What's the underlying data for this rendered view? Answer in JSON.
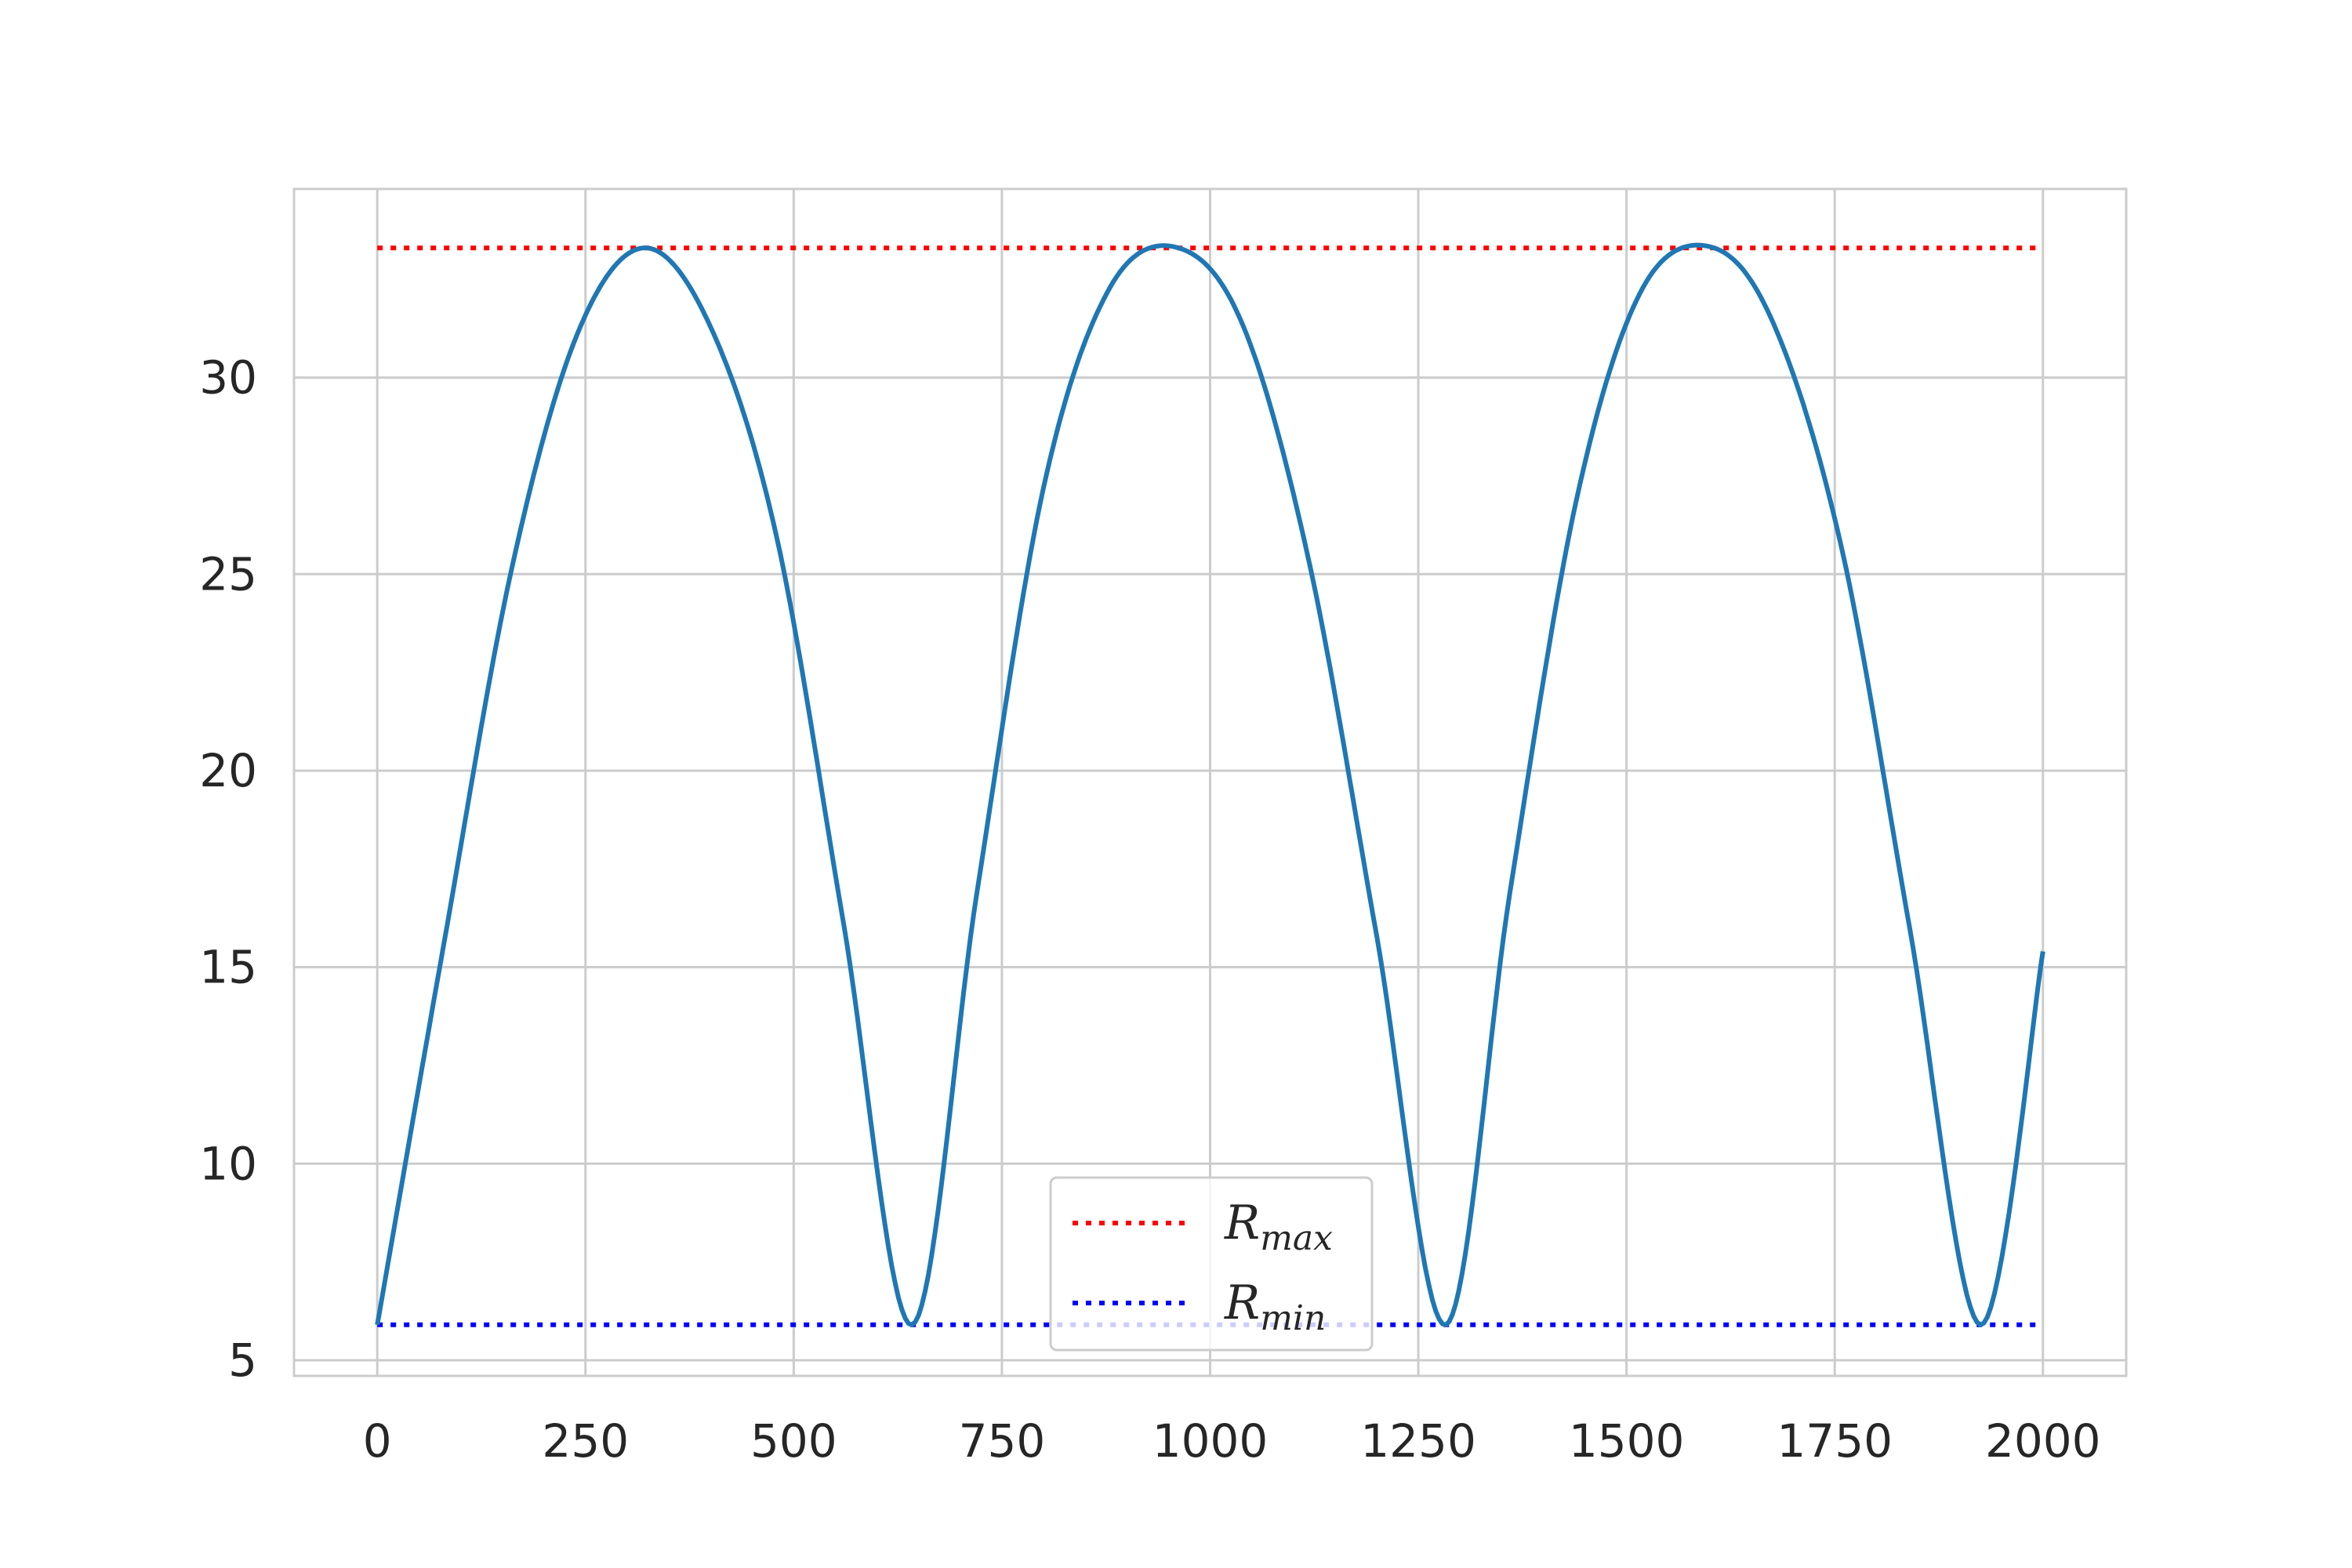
{
  "chart_data": {
    "type": "line",
    "title": "",
    "xlabel": "",
    "ylabel": "",
    "xlim": [
      -100,
      2100
    ],
    "ylim": [
      4.6,
      34.8
    ],
    "x_ticks": [
      0,
      250,
      500,
      750,
      1000,
      1250,
      1500,
      1750,
      2000
    ],
    "x_tick_labels": [
      "0",
      "250",
      "500",
      "750",
      "1000",
      "1250",
      "1500",
      "1750",
      "2000"
    ],
    "y_ticks": [
      5,
      10,
      15,
      20,
      25,
      30
    ],
    "y_tick_labels": [
      "5",
      "10",
      "15",
      "20",
      "25",
      "30"
    ],
    "grid": true,
    "legend_position": "lower-center",
    "series": [
      {
        "name": "",
        "color": "#1f77b4",
        "style": "solid",
        "x": [
          0,
          80,
          160,
          240,
          320,
          400,
          480,
          560,
          642,
          720,
          800,
          880,
          962,
          1040,
          1120,
          1200,
          1283,
          1360,
          1440,
          1520,
          1605,
          1680,
          1760,
          1840,
          1925,
          2000
        ],
        "y": [
          5.9,
          15.6,
          25.0,
          31.1,
          33.3,
          31.3,
          25.9,
          16.1,
          5.9,
          16.9,
          27.2,
          32.3,
          33.3,
          31.3,
          25.2,
          15.8,
          5.9,
          16.9,
          26.9,
          32.3,
          33.3,
          31.2,
          25.5,
          16.0,
          5.9,
          15.4
        ]
      },
      {
        "name": "R_max",
        "label_main": "R",
        "label_sub": "max",
        "color": "#ff0000",
        "style": "dotted",
        "x": [
          0,
          2000
        ],
        "y": [
          33.3,
          33.3
        ]
      },
      {
        "name": "R_min",
        "label_main": "R",
        "label_sub": "min",
        "color": "#0000ff",
        "style": "dotted",
        "x": [
          0,
          2000
        ],
        "y": [
          5.9,
          5.9
        ]
      }
    ]
  }
}
